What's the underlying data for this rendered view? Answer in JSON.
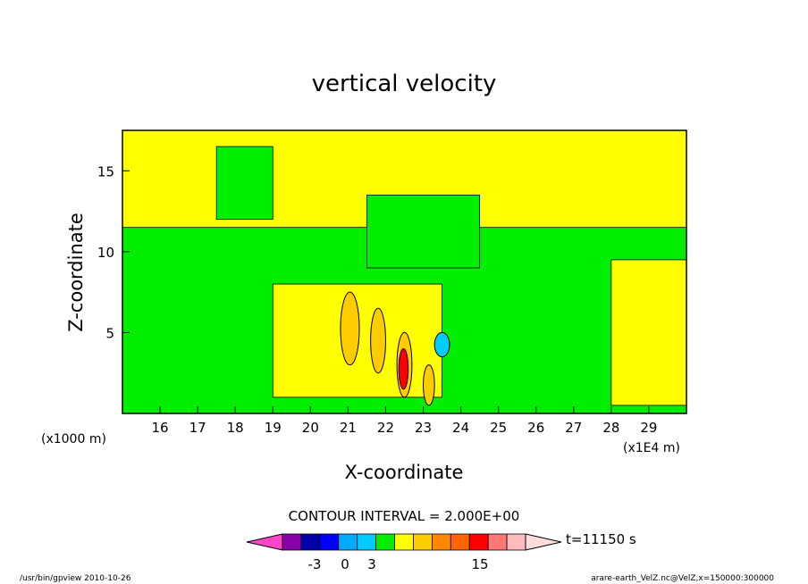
{
  "chart_data": {
    "type": "heatmap",
    "title": "vertical velocity",
    "xlabel": "X-coordinate",
    "ylabel": "Z-coordinate",
    "x_unit_note": "(x1E4 m)",
    "y_unit_note": "(x1000 m)",
    "xlim": [
      15.0,
      30.0
    ],
    "ylim": [
      0.0,
      17.5
    ],
    "x_ticks": [
      "16",
      "17",
      "18",
      "19",
      "20",
      "21",
      "22",
      "23",
      "24",
      "25",
      "26",
      "27",
      "28",
      "29"
    ],
    "y_ticks": [
      "5",
      "10",
      "15"
    ],
    "contour_interval_text": "CONTOUR INTERVAL = 2.000E+00",
    "colorbar_labels": [
      "-3",
      "0",
      "3",
      "15"
    ],
    "time_label": "t=11150 s",
    "footer_left": "/usr/bin/gpview  2010-10-26",
    "footer_right": "arare-earth_VelZ.nc@VelZ,x=150000:300000",
    "colors": {
      "background_band": "#ffff00",
      "main_band": "#00ee00",
      "positive_1": "#ffcc00",
      "positive_2": "#ff6600",
      "positive_3": "#ff0000",
      "negative_1": "#00ccff",
      "colorbar": [
        "#ff44cc",
        "#8800aa",
        "#0000aa",
        "#0000ff",
        "#00aaff",
        "#00ccff",
        "#00ee00",
        "#ffff00",
        "#ffcc00",
        "#ff8800",
        "#ff6600",
        "#ff0000",
        "#ff7777",
        "#ffbbbb",
        "#ffdddd"
      ]
    },
    "regions": [
      {
        "level": "yellow",
        "x": [
          15.0,
          30.0
        ],
        "y": [
          0.0,
          17.5
        ]
      },
      {
        "level": "green",
        "x": [
          15.0,
          30.0
        ],
        "y": [
          0.0,
          11.5
        ]
      },
      {
        "level": "green",
        "x": [
          17.5,
          19.0
        ],
        "y": [
          12.0,
          16.5
        ]
      },
      {
        "level": "green",
        "x": [
          21.5,
          24.5
        ],
        "y": [
          9.0,
          13.5
        ]
      },
      {
        "level": "yellow",
        "x": [
          19.0,
          23.5
        ],
        "y": [
          1.0,
          8.0
        ]
      },
      {
        "level": "yellow",
        "x": [
          28.0,
          30.0
        ],
        "y": [
          0.5,
          9.5
        ]
      },
      {
        "level": "orange",
        "x": [
          20.8,
          21.3
        ],
        "y": [
          3.0,
          7.5
        ]
      },
      {
        "level": "orange",
        "x": [
          21.6,
          22.0
        ],
        "y": [
          2.5,
          6.5
        ]
      },
      {
        "level": "orange",
        "x": [
          22.3,
          22.7
        ],
        "y": [
          1.0,
          5.0
        ]
      },
      {
        "level": "orange",
        "x": [
          23.0,
          23.3
        ],
        "y": [
          0.5,
          3.0
        ]
      },
      {
        "level": "red",
        "x": [
          22.35,
          22.6
        ],
        "y": [
          1.5,
          4.0
        ]
      },
      {
        "level": "blue",
        "x": [
          23.3,
          23.7
        ],
        "y": [
          3.5,
          5.0
        ]
      }
    ]
  }
}
